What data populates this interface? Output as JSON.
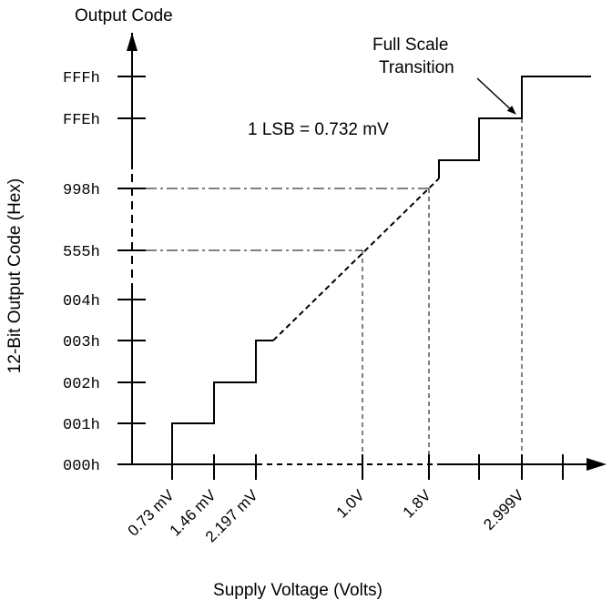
{
  "top_label": "Output Code",
  "ylabel": "12-Bit Output Code (Hex)",
  "xlabel": "Supply Voltage (Volts)",
  "lsb_note": "1 LSB = 0.732 mV",
  "callout": {
    "line1": "Full Scale",
    "line2": "Transition"
  },
  "y_codes": [
    "000h",
    "001h",
    "002h",
    "003h",
    "004h",
    "555h",
    "998h",
    "FFEh",
    "FFFh"
  ],
  "x_labels": [
    "0.73 mV",
    "1.46 mV",
    "2.197 mV",
    "1.0V",
    "1.8V",
    "2.999V"
  ],
  "colors": {
    "line": "#000000",
    "background": "#ffffff"
  }
}
